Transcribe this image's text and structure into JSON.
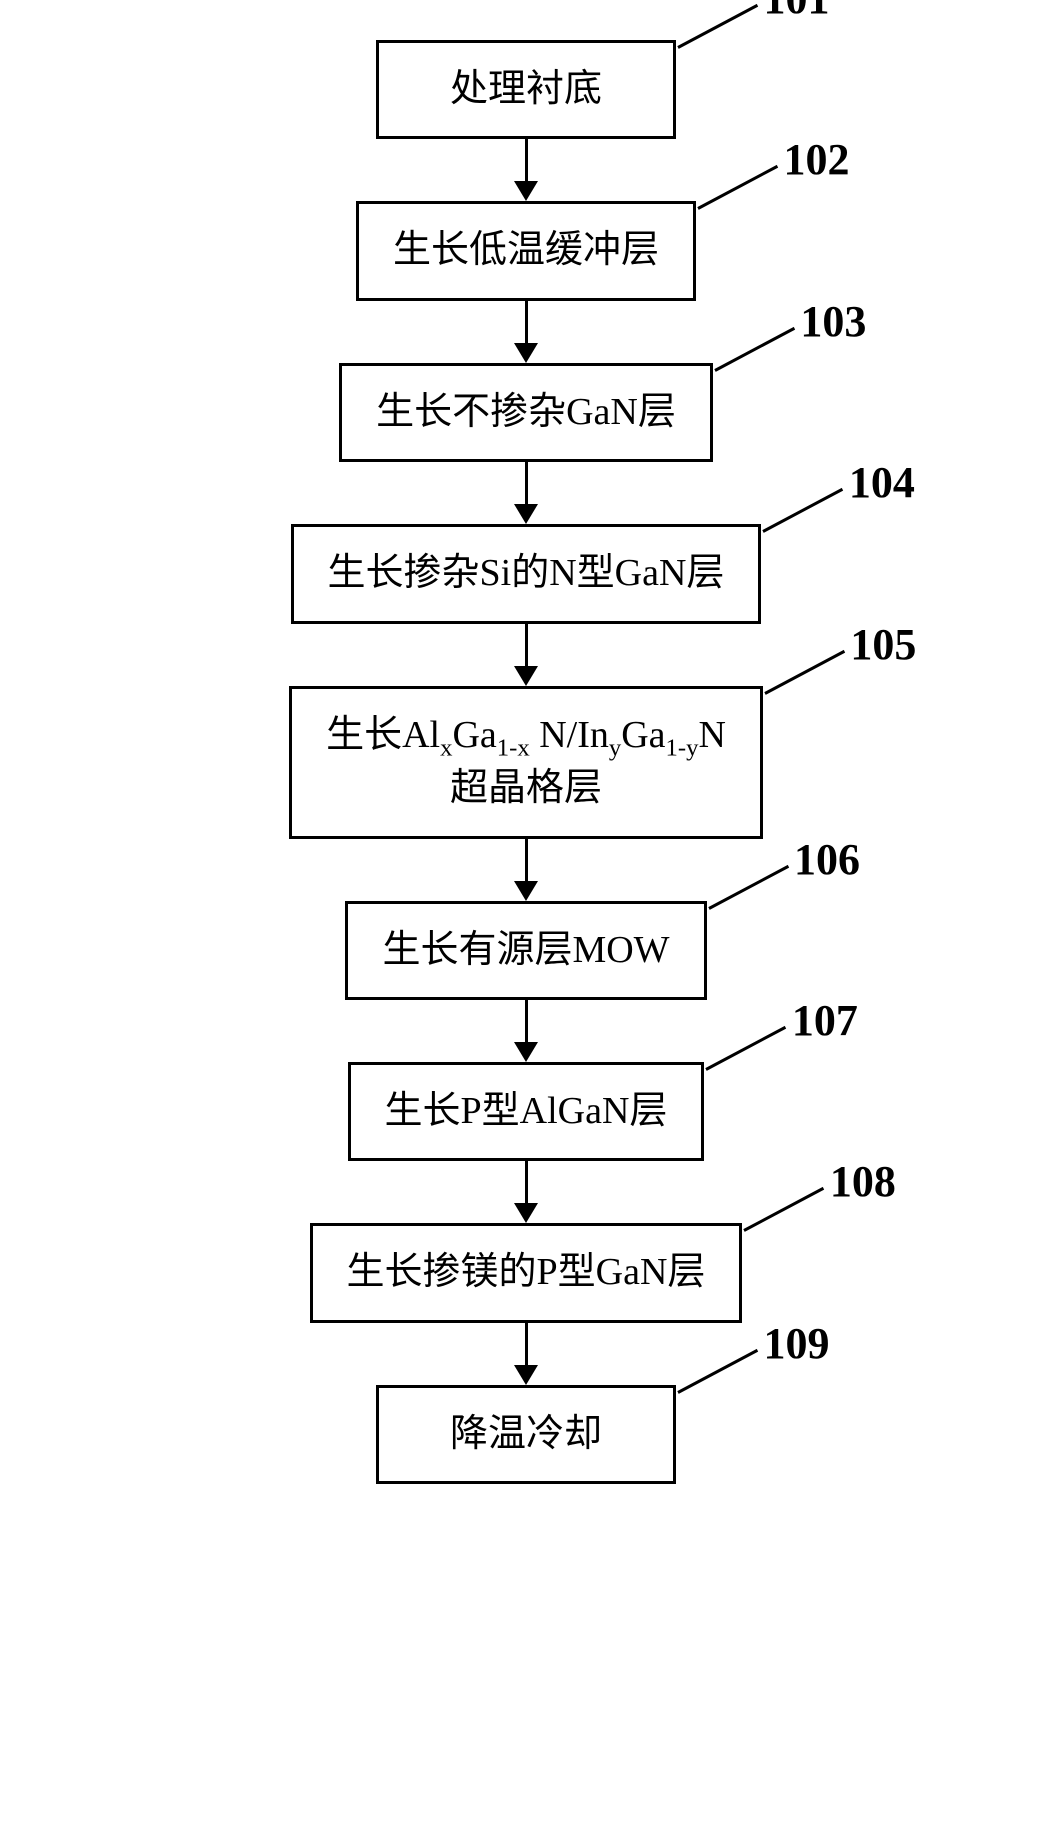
{
  "flowchart": {
    "type": "flowchart",
    "background_color": "#ffffff",
    "box_border_color": "#000000",
    "box_border_width": 3,
    "box_bg_color": "#ffffff",
    "box_font_size": 38,
    "box_text_color": "#000000",
    "label_font_size": 44,
    "label_font_weight": "bold",
    "label_color": "#000000",
    "arrow_color": "#000000",
    "arrow_shaft_width": 3,
    "arrow_shaft_height": 44,
    "arrow_head_width": 24,
    "arrow_head_height": 20,
    "label_line_len": 90,
    "label_line_angle": -28,
    "steps": [
      {
        "id": "101",
        "text": "处理衬底"
      },
      {
        "id": "102",
        "text": "生长低温缓冲层"
      },
      {
        "id": "103",
        "text": "生长不掺杂GaN层"
      },
      {
        "id": "104",
        "text": "生长掺杂Si的N型GaN层"
      },
      {
        "id": "105",
        "text": "生长Al<sub>x</sub>Ga<sub>1-x</sub> N/In<sub>y</sub>Ga<sub>1-y</sub>N\n超晶格层"
      },
      {
        "id": "106",
        "text": "生长有源层MOW"
      },
      {
        "id": "107",
        "text": "生长P型AlGaN层"
      },
      {
        "id": "108",
        "text": "生长掺镁的P型GaN层"
      },
      {
        "id": "109",
        "text": "降温冷却"
      }
    ]
  }
}
